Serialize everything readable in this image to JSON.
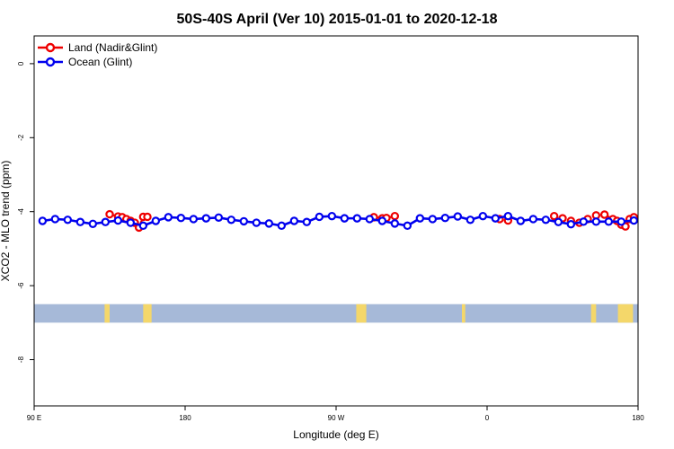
{
  "chart_data": {
    "type": "line",
    "title": "50S-40S April (Ver 10)   2015-01-01 to 2020-12-18",
    "xlabel": "Longitude (deg E)",
    "ylabel": "XCO2 - MLO trend (ppm)",
    "xlim": [
      90,
      450
    ],
    "ylim": [
      -9.25,
      0.75
    ],
    "x_ticks": [
      {
        "value": 90,
        "label": "90 E"
      },
      {
        "value": 180,
        "label": "180"
      },
      {
        "value": 270,
        "label": "90 W"
      },
      {
        "value": 360,
        "label": "0"
      },
      {
        "value": 450,
        "label": "180"
      }
    ],
    "y_ticks": [
      {
        "value": 0,
        "label": "0"
      },
      {
        "value": -2,
        "label": "-2"
      },
      {
        "value": -4,
        "label": "-4"
      },
      {
        "value": -6,
        "label": "-6"
      },
      {
        "value": -8,
        "label": "-8"
      }
    ],
    "legend_position": "top-left",
    "grid": false,
    "series": [
      {
        "name": "Land (Nadir&Glint)",
        "color": "#ee0000",
        "x": [
          135,
          140,
          142.5,
          145,
          147.5,
          150,
          152.5,
          155,
          157.5,
          292.5,
          297.5,
          300,
          305,
          367.5,
          372.5,
          400,
          405,
          410,
          415,
          420,
          425,
          430,
          435,
          437.5,
          440,
          442.5,
          445,
          447.5
        ],
        "y": [
          -4.07,
          -4.13,
          -4.15,
          -4.2,
          -4.25,
          -4.3,
          -4.43,
          -4.14,
          -4.14,
          -4.15,
          -4.18,
          -4.17,
          -4.12,
          -4.2,
          -4.24,
          -4.12,
          -4.18,
          -4.25,
          -4.3,
          -4.2,
          -4.1,
          -4.08,
          -4.2,
          -4.25,
          -4.35,
          -4.4,
          -4.2,
          -4.15
        ],
        "segments": [
          [
            135,
            157.5
          ],
          [
            292.5,
            305
          ],
          [
            430,
            447.5
          ]
        ]
      },
      {
        "name": "Ocean (Glint)",
        "color": "#0000ee",
        "x": [
          95,
          102.5,
          110,
          117.5,
          125,
          132.5,
          140,
          147.5,
          155,
          162.5,
          170,
          177.5,
          185,
          192.5,
          200,
          207.5,
          215,
          222.5,
          230,
          237.5,
          245,
          252.5,
          260,
          267.5,
          275,
          282.5,
          290,
          297.5,
          305,
          312.5,
          320,
          327.5,
          335,
          342.5,
          350,
          357.5,
          365,
          372.5,
          380,
          387.5,
          395,
          402.5,
          410,
          417.5,
          425,
          432.5,
          440,
          447.5
        ],
        "y": [
          -4.25,
          -4.2,
          -4.22,
          -4.28,
          -4.33,
          -4.28,
          -4.24,
          -4.3,
          -4.38,
          -4.25,
          -4.15,
          -4.17,
          -4.2,
          -4.18,
          -4.16,
          -4.22,
          -4.26,
          -4.3,
          -4.32,
          -4.38,
          -4.25,
          -4.28,
          -4.14,
          -4.12,
          -4.18,
          -4.18,
          -4.2,
          -4.25,
          -4.32,
          -4.38,
          -4.18,
          -4.2,
          -4.17,
          -4.13,
          -4.22,
          -4.12,
          -4.18,
          -4.12,
          -4.25,
          -4.2,
          -4.22,
          -4.28,
          -4.34,
          -4.27,
          -4.27,
          -4.27,
          -4.27,
          -4.24
        ]
      }
    ],
    "land_mask": {
      "y_range": [
        -6.5,
        -7.0
      ],
      "band_color": "#a6b9d8",
      "land_color": "#f4d76a",
      "land_longitudes": [
        [
          132,
          135
        ],
        [
          155,
          160
        ],
        [
          282,
          288
        ],
        [
          345,
          347
        ],
        [
          422,
          425
        ],
        [
          438,
          447
        ]
      ]
    }
  }
}
